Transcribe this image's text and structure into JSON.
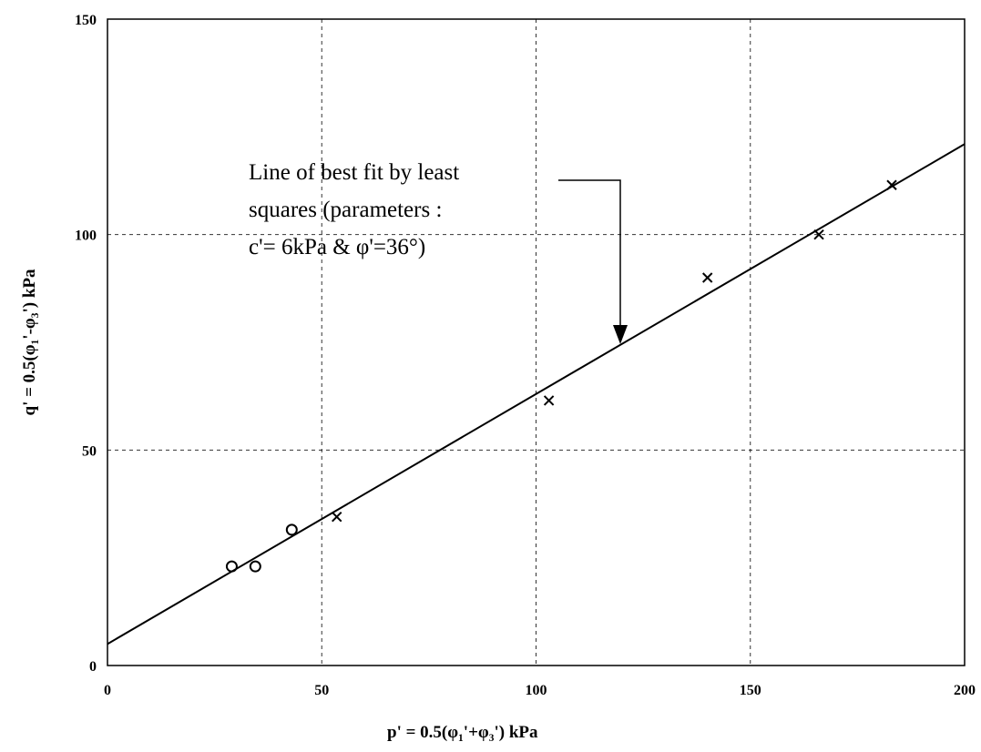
{
  "chart_data": {
    "type": "scatter",
    "xlabel": "p' = 0.5(φ₁'+φ₃') kPa",
    "ylabel": "q' = 0.5(φ₁'-φ₃') kPa",
    "xlim": [
      0,
      200
    ],
    "ylim": [
      0,
      150
    ],
    "xticks": [
      "0",
      "50",
      "100",
      "150",
      "200"
    ],
    "yticks": [
      "0",
      "50",
      "100",
      "150"
    ],
    "grid": true,
    "series": [
      {
        "marker": "circle",
        "points": [
          [
            29,
            23
          ],
          [
            34.5,
            23
          ],
          [
            43,
            31.5
          ]
        ]
      },
      {
        "marker": "cross",
        "points": [
          [
            53.5,
            34.5
          ],
          [
            103,
            61.5
          ],
          [
            140,
            90
          ],
          [
            166,
            100
          ],
          [
            183,
            111.5
          ]
        ]
      }
    ],
    "fit_line": {
      "x": [
        0,
        200
      ],
      "y": [
        5,
        121
      ]
    },
    "annotation": {
      "lines": [
        "Line of best fit by least",
        "squares (parameters :",
        "c'= 6kPa & φ'=36°)"
      ],
      "arrow_target": [
        120,
        75
      ]
    }
  }
}
